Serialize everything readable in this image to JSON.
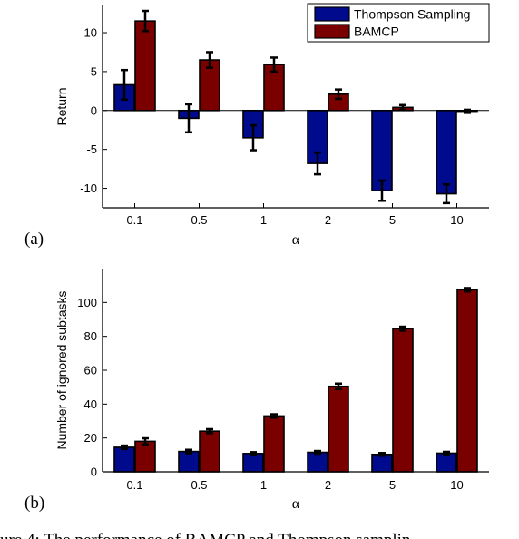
{
  "colors": {
    "thompson": "#000a8c",
    "bamcp": "#7a0000",
    "axis": "#000000",
    "errorbar": "#000000"
  },
  "caption": "ure 4: The performance of BAMCP and Thompson samplin",
  "chart_data": [
    {
      "type": "bar",
      "panel_label": "(a)",
      "xlabel": "α",
      "ylabel": "Return",
      "categories": [
        "0.1",
        "0.5",
        "1",
        "2",
        "5",
        "10"
      ],
      "ylim": [
        -12.5,
        13.5
      ],
      "yticks": [
        -10,
        -5,
        0,
        5,
        10
      ],
      "grid": false,
      "zero_line": true,
      "legend": {
        "placement": "top-right",
        "entries": [
          "Thompson Sampling",
          "BAMCP"
        ]
      },
      "series": [
        {
          "name": "Thompson Sampling",
          "values": [
            3.3,
            -1.0,
            -3.5,
            -6.8,
            -10.3,
            -10.7
          ],
          "errors": [
            1.9,
            1.8,
            1.6,
            1.4,
            1.3,
            1.2
          ]
        },
        {
          "name": "BAMCP",
          "values": [
            11.5,
            6.5,
            5.9,
            2.1,
            0.4,
            -0.1
          ],
          "errors": [
            1.3,
            1.0,
            0.9,
            0.6,
            0.3,
            0.2
          ]
        }
      ]
    },
    {
      "type": "bar",
      "panel_label": "(b)",
      "xlabel": "α",
      "ylabel": "Number of ignored subtasks",
      "categories": [
        "0.1",
        "0.5",
        "1",
        "2",
        "5",
        "10"
      ],
      "ylim": [
        0,
        120
      ],
      "yticks": [
        0,
        20,
        40,
        60,
        80,
        100
      ],
      "grid": false,
      "series": [
        {
          "name": "Thompson Sampling",
          "values": [
            14.5,
            12.0,
            10.8,
            11.5,
            10.3,
            11.0
          ],
          "errors": [
            1.0,
            1.0,
            0.8,
            0.8,
            0.8,
            0.8
          ]
        },
        {
          "name": "BAMCP",
          "values": [
            18.0,
            24.0,
            33.0,
            50.5,
            84.5,
            107.5
          ],
          "errors": [
            1.8,
            1.2,
            1.0,
            1.6,
            1.2,
            1.0
          ]
        }
      ]
    }
  ]
}
